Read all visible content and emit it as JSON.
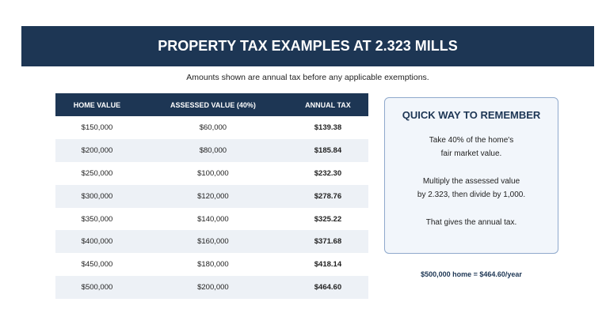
{
  "header": {
    "title": "PROPERTY TAX EXAMPLES AT 2.323 MILLS",
    "subtitle": "Amounts shown are annual tax before any applicable exemptions."
  },
  "table": {
    "headers": [
      "HOME VALUE",
      "ASSESSED VALUE (40%)",
      "ANNUAL TAX"
    ],
    "rows": [
      [
        "$150,000",
        "$60,000",
        "$139.38"
      ],
      [
        "$200,000",
        "$80,000",
        "$185.84"
      ],
      [
        "$250,000",
        "$100,000",
        "$232.30"
      ],
      [
        "$300,000",
        "$120,000",
        "$278.76"
      ],
      [
        "$350,000",
        "$140,000",
        "$325.22"
      ],
      [
        "$400,000",
        "$160,000",
        "$371.68"
      ],
      [
        "$450,000",
        "$180,000",
        "$418.14"
      ],
      [
        "$500,000",
        "$200,000",
        "$464.60"
      ]
    ]
  },
  "box": {
    "title": "QUICK WAY TO REMEMBER",
    "paragraphs": [
      [
        "Take 40% of the home's",
        "fair market value."
      ],
      [
        "Multiply the assessed value",
        "by 2.323, then divide by 1,000."
      ],
      [
        "That gives the annual tax."
      ]
    ]
  },
  "note": "$500,000 home = $464.60/year"
}
